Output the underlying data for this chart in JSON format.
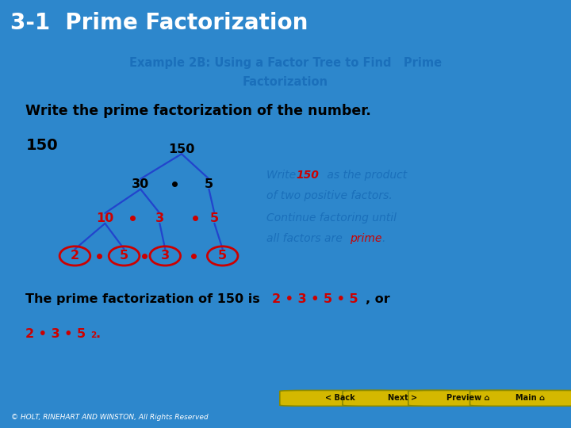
{
  "title": "3-1  Prime Factorization",
  "title_bg": "#0d1b3e",
  "title_color": "#ffffff",
  "subtitle_line1": "Example 2B: Using a Factor Tree to Find   Prime",
  "subtitle_line2": "Factorization",
  "subtitle_color": "#1a6fba",
  "content_bg": "#ffffff",
  "outer_bg": "#2d87cc",
  "footer_bg": "#000000",
  "nav_bg": "#d4b800",
  "body_text": "Write the prime factorization of the number.",
  "body_color": "#000000",
  "number_label": "150",
  "tree_color": "#2244cc",
  "black_color": "#000000",
  "prime_color": "#cc0000",
  "red_dot_color": "#cc0000",
  "italic_blue": "#1a6fba",
  "italic_red": "#cc0000",
  "bottom_black": "#000000",
  "bottom_red": "#cc0000",
  "footer_text": "© HOLT, RINEHART AND WINSTON, All Rights Reserved",
  "footer_color": "#ffffff",
  "note1_blue": "Write ",
  "note1_red": "150",
  "note1_blue2": " as the product",
  "note1_line2": "of two positive factors.",
  "note2_line1": "Continue factoring until",
  "note2_line2a": "all factors are ",
  "note2_red": "prime",
  "note2_end": "."
}
